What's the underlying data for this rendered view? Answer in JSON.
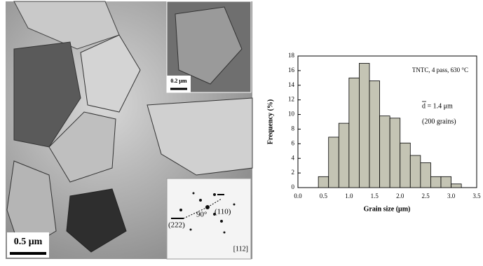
{
  "micrograph": {
    "scale_bar": "0.5 μm",
    "inset_scale_bar": "0.2 μm",
    "diffraction": {
      "angle": "90°",
      "spots": [
        "(110)",
        "(222)"
      ],
      "zone_axis": "[112]"
    }
  },
  "chart_data": {
    "type": "histogram",
    "xlabel": "Grain size (μm)",
    "ylabel": "Frequency (%)",
    "annotations": [
      "TNTC, 4 pass, 630 °C",
      "d = 1.4 μm",
      "(200 grains)"
    ],
    "bins": [
      0.4,
      0.6,
      0.8,
      1.0,
      1.2,
      1.4,
      1.6,
      1.8,
      2.0,
      2.2,
      2.4,
      2.6,
      2.8,
      3.0,
      3.2
    ],
    "values": [
      1.5,
      6.9,
      8.8,
      15,
      17,
      14.6,
      9.8,
      9.5,
      6.1,
      4.4,
      3.4,
      1.5,
      1.5,
      0.5
    ],
    "color": "#c4c4b4",
    "xlim": [
      0,
      3.5
    ],
    "xticks": [
      {
        "value": 0,
        "label": "0.0"
      },
      {
        "value": 0.5,
        "label": "0.5"
      },
      {
        "value": 1,
        "label": "1.0"
      },
      {
        "value": 1.5,
        "label": "1.5"
      },
      {
        "value": 2,
        "label": "2.0"
      },
      {
        "value": 2.5,
        "label": "2.5"
      },
      {
        "value": 3,
        "label": "3.0"
      },
      {
        "value": 3.5,
        "label": "3.5"
      }
    ],
    "ylim": [
      0,
      18
    ],
    "yticks": [
      0,
      2,
      4,
      6,
      8,
      10,
      12,
      14,
      16,
      18
    ]
  }
}
